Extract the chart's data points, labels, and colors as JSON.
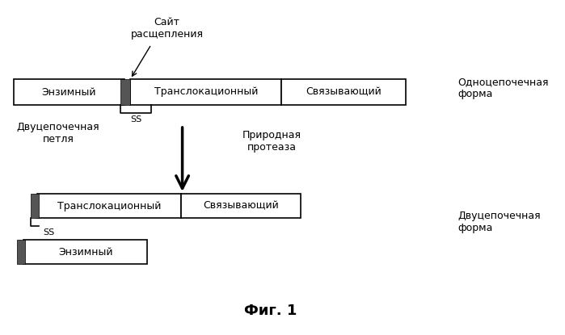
{
  "bg_color": "#ffffff",
  "title_bottom": "Фиг. 1",
  "top_label": "Сайт\nрасщепления",
  "right_label_top": "Одноцепочечная\nформа",
  "right_label_bottom": "Двуцепочечная\nформа",
  "left_label_mid": "Двуцепочечная\nпетля",
  "mid_label": "Природная\nпротеаза",
  "box1_text": "Энзимный",
  "box2_text": "Транслокационный",
  "box3_text": "Связывающий",
  "box4_text": "Транслокационный",
  "box5_text": "Связывающий",
  "box6_text": "Энзимный",
  "ss_label": "SS"
}
